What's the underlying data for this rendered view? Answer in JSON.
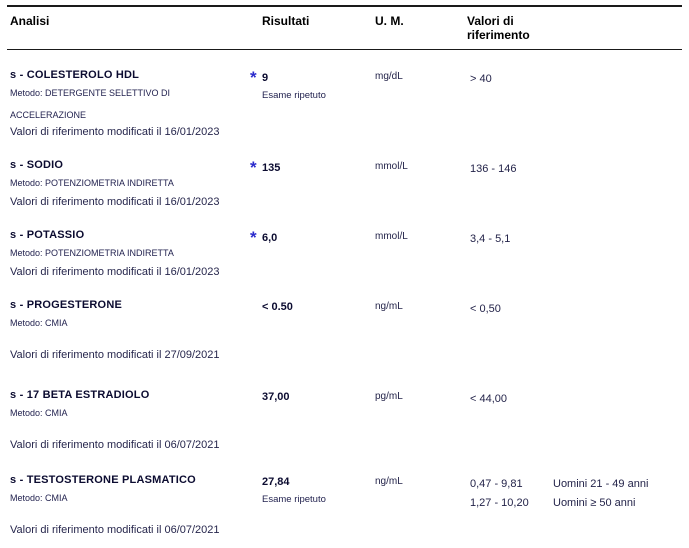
{
  "colors": {
    "flag_blue": "#2b2bcc",
    "text_dark": "#0b0b30",
    "rule": "#1a1a1a"
  },
  "header": {
    "col_analisi": "Analisi",
    "col_risultati": "Risultati",
    "col_um": "U. M.",
    "col_riferimento": "Valori di riferimento"
  },
  "rows": [
    {
      "name": "s - COLESTEROLO HDL",
      "method": "Metodo: DETERGENTE SELETTIVO DI ACCELERAZIONE",
      "note": "Valori di riferimento modificati il 16/01/2023",
      "flag": "*",
      "result": "9",
      "result_note": "Esame ripetuto",
      "unit": "mg/dL",
      "ref1": "> 40"
    },
    {
      "name": "s - SODIO",
      "method": "Metodo: POTENZIOMETRIA INDIRETTA",
      "note": "Valori di riferimento modificati il 16/01/2023",
      "flag": "*",
      "result": "135",
      "unit": "mmol/L",
      "ref1": "136 - 146"
    },
    {
      "name": "s - POTASSIO",
      "method": "Metodo: POTENZIOMETRIA INDIRETTA",
      "note": "Valori di riferimento modificati il 16/01/2023",
      "flag": "*",
      "result": "6,0",
      "unit": "mmol/L",
      "ref1": "3,4 - 5,1"
    },
    {
      "name": "s - PROGESTERONE",
      "method": "Metodo: CMIA",
      "note": "Valori di riferimento modificati il 27/09/2021",
      "result": "< 0.50",
      "unit": "ng/mL",
      "ref1": "< 0,50"
    },
    {
      "name": "s - 17 BETA ESTRADIOLO",
      "method": "Metodo: CMIA",
      "note": "Valori di riferimento modificati il 06/07/2021",
      "result": "37,00",
      "unit": "pg/mL",
      "ref1": "< 44,00"
    },
    {
      "name": "s - TESTOSTERONE PLASMATICO",
      "method": "Metodo: CMIA",
      "note": "Valori di riferimento modificati il 06/07/2021",
      "result": "27,84",
      "result_note": "Esame ripetuto",
      "unit": "ng/mL",
      "ref1": "0,47 - 9,81",
      "ref2": "1,27 - 10,20",
      "ref1_note": "Uomini 21 - 49 anni",
      "ref2_note": "Uomini ≥ 50 anni"
    }
  ]
}
